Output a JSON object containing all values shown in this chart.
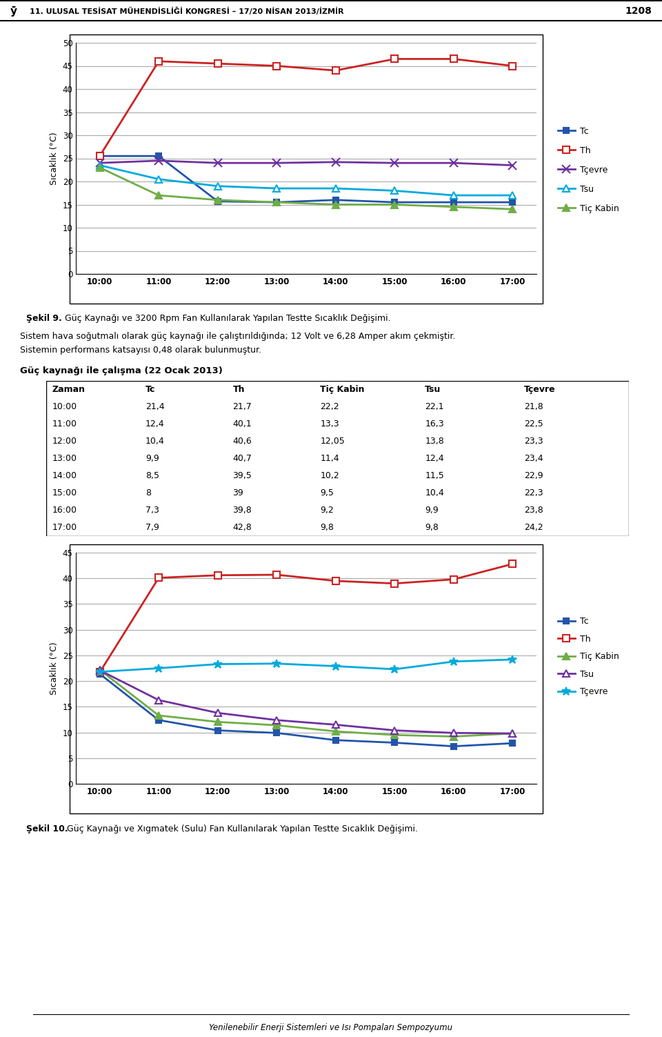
{
  "page_header": "11. ULUSAL TESİSAT MÜHENDİSLİĞİ KONGRESİ – 17/20 NİSAN 2013/İZMİR",
  "page_number": "1208",
  "fig9_caption_bold": "Şekil 9.",
  "fig9_caption_rest": " Güç Kaynağı ve 3200 Rpm Fan Kullanılarak Yapılan Testte Sıcaklık Değişimi.",
  "fig10_caption_bold": "Şekil 10.",
  "fig10_caption_rest": " Güç Kaynağı ve Xıgmatek (Sulu) Fan Kullanılarak Yapılan Testte Sıcaklık Değişimi.",
  "footer": "Yenilenebilir Enerji Sistemleri ve Isı Pompaları Sempozyumu",
  "paragraph1": "Sistem hava soğutmalı olarak güç kaynağı ile çalıştırıldığında; 12 Volt ve 6,28 Amper akım çekmiştir.",
  "paragraph2": "Sistemin performans katsayısı 0,48 olarak bulunmuştur.",
  "table_title": "Güç kaynağı ile çalışma (22 Ocak 2013)",
  "table_headers": [
    "Zaman",
    "Tc",
    "Th",
    "Tiç Kabin",
    "Tsu",
    "Tçevre"
  ],
  "table_data": [
    [
      "10:00",
      "21,4",
      "21,7",
      "22,2",
      "22,1",
      "21,8"
    ],
    [
      "11:00",
      "12,4",
      "40,1",
      "13,3",
      "16,3",
      "22,5"
    ],
    [
      "12:00",
      "10,4",
      "40,6",
      "12,05",
      "13,8",
      "23,3"
    ],
    [
      "13:00",
      "9,9",
      "40,7",
      "11,4",
      "12,4",
      "23,4"
    ],
    [
      "14:00",
      "8,5",
      "39,5",
      "10,2",
      "11,5",
      "22,9"
    ],
    [
      "15:00",
      "8",
      "39",
      "9,5",
      "10,4",
      "22,3"
    ],
    [
      "16:00",
      "7,3",
      "39,8",
      "9,2",
      "9,9",
      "23,8"
    ],
    [
      "17:00",
      "7,9",
      "42,8",
      "9,8",
      "9,8",
      "24,2"
    ]
  ],
  "times": [
    "10:00",
    "11:00",
    "12:00",
    "13:00",
    "14:00",
    "15:00",
    "16:00",
    "17:00"
  ],
  "chart1": {
    "ylabel": "Sıcaklık (°C)",
    "ylim": [
      0,
      50
    ],
    "yticks": [
      0,
      5,
      10,
      15,
      20,
      25,
      30,
      35,
      40,
      45,
      50
    ],
    "series": {
      "Tc": {
        "values": [
          25.5,
          25.5,
          15.7,
          15.5,
          16.0,
          15.5,
          15.5,
          15.5
        ],
        "color": "#2255AA",
        "marker": "s",
        "mfc": "#2255AA",
        "markersize": 6
      },
      "Th": {
        "values": [
          25.5,
          46.0,
          45.5,
          45.0,
          44.0,
          46.5,
          46.5,
          45.0
        ],
        "color": "#CC2222",
        "marker": "s",
        "mfc": "white",
        "markersize": 7
      },
      "Tçevre": {
        "values": [
          24.0,
          24.5,
          24.0,
          24.0,
          24.2,
          24.0,
          24.0,
          23.5
        ],
        "color": "#7030A0",
        "marker": "x",
        "mfc": "#7030A0",
        "markersize": 8
      },
      "Tsu": {
        "values": [
          23.5,
          20.5,
          19.0,
          18.5,
          18.5,
          18.0,
          17.0,
          17.0
        ],
        "color": "#00AADD",
        "marker": "^",
        "mfc": "white",
        "markersize": 7
      },
      "Tiç Kabin": {
        "values": [
          23.0,
          17.0,
          16.0,
          15.5,
          15.0,
          15.0,
          14.5,
          14.0
        ],
        "color": "#70AD47",
        "marker": "^",
        "mfc": "#70AD47",
        "markersize": 7
      }
    },
    "legend_order": [
      "Tc",
      "Th",
      "Tçevre",
      "Tsu",
      "Tiç Kabin"
    ],
    "legend_markers": [
      "s",
      "s",
      "x",
      "^",
      "^"
    ],
    "legend_mfc": [
      "#2255AA",
      "white",
      "#7030A0",
      "white",
      "#70AD47"
    ]
  },
  "chart2": {
    "ylabel": "Sıcaklık (°C)",
    "ylim": [
      0,
      45
    ],
    "yticks": [
      0,
      5,
      10,
      15,
      20,
      25,
      30,
      35,
      40,
      45
    ],
    "series": {
      "Tc": {
        "values": [
          21.4,
          12.4,
          10.4,
          9.9,
          8.5,
          8.0,
          7.3,
          7.9
        ],
        "color": "#2255AA",
        "marker": "s",
        "mfc": "#2255AA",
        "markersize": 6
      },
      "Th": {
        "values": [
          21.7,
          40.1,
          40.6,
          40.7,
          39.5,
          39.0,
          39.8,
          42.8
        ],
        "color": "#CC2222",
        "marker": "s",
        "mfc": "white",
        "markersize": 7
      },
      "Tiç Kabin": {
        "values": [
          22.2,
          13.3,
          12.05,
          11.4,
          10.2,
          9.5,
          9.2,
          9.8
        ],
        "color": "#70AD47",
        "marker": "^",
        "mfc": "#70AD47",
        "markersize": 7
      },
      "Tsu": {
        "values": [
          22.1,
          16.3,
          13.8,
          12.4,
          11.5,
          10.4,
          9.9,
          9.8
        ],
        "color": "#7030A0",
        "marker": "^",
        "mfc": "white",
        "markersize": 7
      },
      "Tçevre": {
        "values": [
          21.8,
          22.5,
          23.3,
          23.4,
          22.9,
          22.3,
          23.8,
          24.2
        ],
        "color": "#00AADD",
        "marker": "*",
        "mfc": "#00AADD",
        "markersize": 9
      }
    },
    "legend_order": [
      "Tc",
      "Th",
      "Tiç Kabin",
      "Tsu",
      "Tçevre"
    ]
  }
}
